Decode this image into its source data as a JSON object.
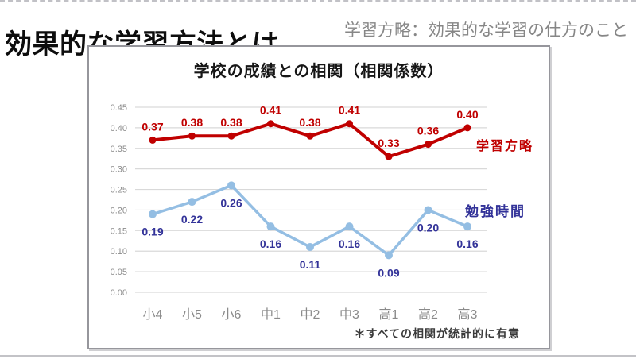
{
  "page": {
    "title": "効果的な学習方法とは…",
    "subtitle": "学習方略：効果的な学習の仕方のこと"
  },
  "chart_data": {
    "type": "line",
    "title": "学校の成績との相関（相関係数）",
    "annotation": "＊すべての相関が統計的に有意",
    "categories": [
      "小4",
      "小5",
      "小6",
      "中1",
      "中2",
      "中3",
      "高1",
      "高2",
      "高3"
    ],
    "series": [
      {
        "name": "学習方略",
        "values": [
          0.37,
          0.38,
          0.38,
          0.41,
          0.38,
          0.41,
          0.33,
          0.36,
          0.4
        ],
        "labels": [
          "0.37",
          "0.38",
          "0.38",
          "0.41",
          "0.38",
          "0.41",
          "0.33",
          "0.36",
          "0.40"
        ],
        "color": "#c00000",
        "label_color": "#c00000",
        "label_side": "above"
      },
      {
        "name": "勉強時間",
        "values": [
          0.19,
          0.22,
          0.26,
          0.16,
          0.11,
          0.16,
          0.09,
          0.2,
          0.16
        ],
        "labels": [
          "0.19",
          "0.22",
          "0.26",
          "0.16",
          "0.11",
          "0.16",
          "0.09",
          "0.20",
          "0.16"
        ],
        "color": "#94bee3",
        "label_color": "#333399",
        "label_side": "below"
      }
    ],
    "xlabel": "",
    "ylabel": "",
    "ylim": [
      0,
      0.45
    ],
    "ytick_step": 0.05,
    "ytick_labels": [
      "0.00",
      "0.05",
      "0.10",
      "0.15",
      "0.20",
      "0.25",
      "0.30",
      "0.35",
      "0.40",
      "0.45"
    ],
    "grid": true,
    "legend_position": "inline-right",
    "colors": {
      "grid": "#d9d9d9",
      "axis_text": "#8c8c8c"
    }
  }
}
